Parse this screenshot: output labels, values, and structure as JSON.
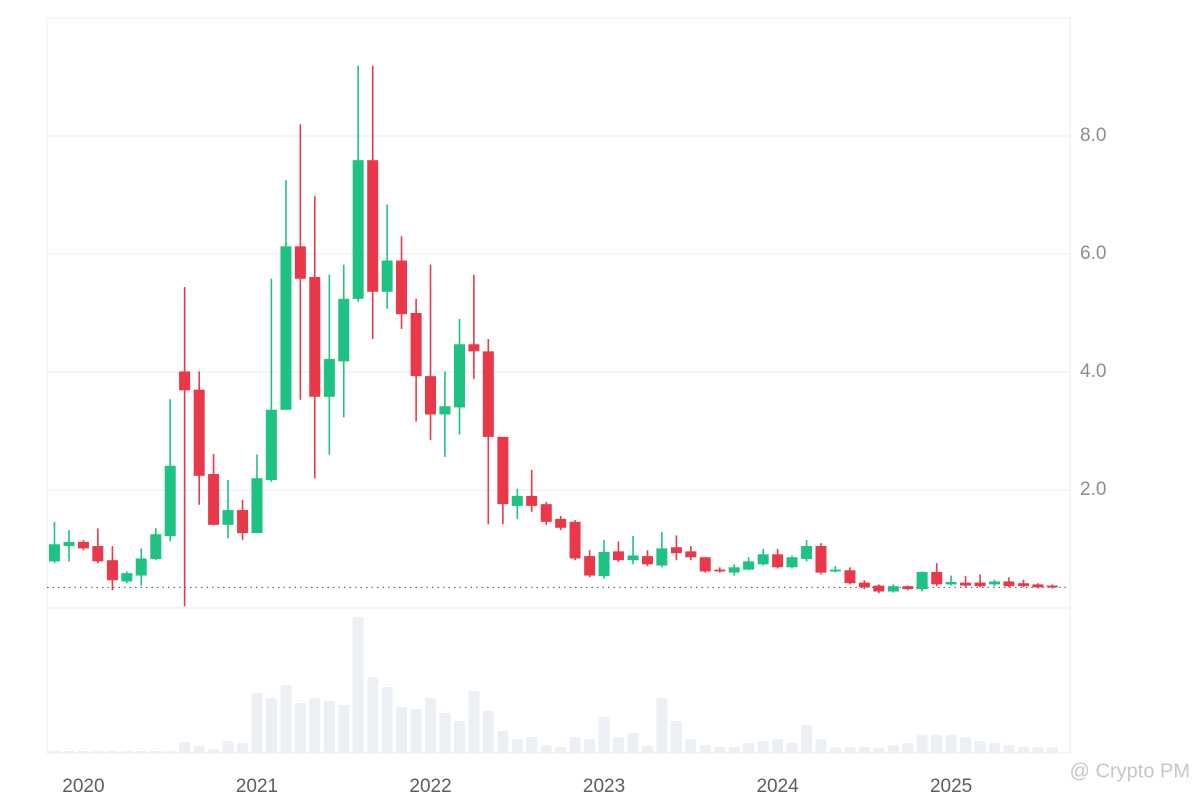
{
  "chart_data": {
    "type": "candlestick",
    "x": [
      2019.833,
      2019.917,
      2020,
      2020.083,
      2020.167,
      2020.25,
      2020.333,
      2020.417,
      2020.5,
      2020.583,
      2020.667,
      2020.75,
      2020.833,
      2020.917,
      2021,
      2021.083,
      2021.167,
      2021.25,
      2021.333,
      2021.417,
      2021.5,
      2021.583,
      2021.667,
      2021.75,
      2021.833,
      2021.917,
      2022,
      2022.083,
      2022.167,
      2022.25,
      2022.333,
      2022.417,
      2022.5,
      2022.583,
      2022.667,
      2022.75,
      2022.833,
      2022.917,
      2023,
      2023.083,
      2023.167,
      2023.25,
      2023.333,
      2023.417,
      2023.5,
      2023.583,
      2023.667,
      2023.75,
      2023.833,
      2023.917,
      2024,
      2024.083,
      2024.167,
      2024.25,
      2024.333,
      2024.417,
      2024.5,
      2024.583,
      2024.667,
      2024.75,
      2024.833,
      2024.917,
      2025,
      2025.083,
      2025.167,
      2025.25,
      2025.333,
      2025.417,
      2025.5,
      2025.583
    ],
    "open": [
      0.79,
      1.05,
      1.12,
      1.05,
      0.81,
      0.45,
      0.55,
      0.83,
      1.22,
      4.01,
      3.7,
      2.27,
      1.41,
      1.66,
      1.27,
      2.17,
      3.36,
      6.13,
      5.61,
      3.58,
      4.18,
      5.24,
      7.59,
      5.36,
      5.89,
      5.0,
      3.93,
      3.28,
      3.4,
      4.47,
      4.35,
      2.9,
      1.73,
      1.9,
      1.76,
      1.51,
      1.46,
      0.88,
      0.54,
      0.96,
      0.81,
      0.88,
      0.72,
      1.03,
      0.96,
      0.86,
      0.65,
      0.6,
      0.65,
      0.74,
      0.91,
      0.69,
      0.83,
      1.05,
      0.62,
      0.64,
      0.43,
      0.38,
      0.28,
      0.37,
      0.32,
      0.61,
      0.4,
      0.43,
      0.43,
      0.4,
      0.45,
      0.42,
      0.4,
      0.38
    ],
    "high": [
      1.46,
      1.32,
      1.15,
      1.35,
      1.05,
      0.62,
      1.01,
      1.35,
      3.54,
      5.44,
      4.01,
      2.61,
      2.17,
      1.83,
      2.6,
      5.58,
      7.25,
      8.2,
      6.98,
      5.65,
      5.82,
      9.19,
      9.19,
      6.84,
      6.3,
      5.24,
      5.82,
      4.01,
      4.9,
      5.65,
      4.56,
      2.9,
      2.02,
      2.34,
      1.8,
      1.56,
      1.49,
      0.98,
      1.15,
      1.13,
      1.22,
      0.98,
      1.29,
      1.23,
      1.05,
      0.86,
      0.69,
      0.74,
      0.86,
      1.0,
      1.0,
      0.89,
      1.15,
      1.1,
      0.71,
      0.69,
      0.47,
      0.4,
      0.4,
      0.38,
      0.62,
      0.76,
      0.55,
      0.54,
      0.57,
      0.48,
      0.52,
      0.48,
      0.42,
      0.4
    ],
    "low": [
      0.76,
      0.79,
      0.98,
      0.76,
      0.3,
      0.42,
      0.38,
      0.81,
      1.13,
      0.03,
      1.75,
      1.4,
      1.18,
      1.15,
      1.27,
      2.14,
      3.36,
      3.53,
      2.2,
      2.6,
      3.23,
      5.19,
      4.56,
      5.07,
      4.73,
      3.16,
      2.85,
      2.56,
      2.94,
      3.88,
      1.42,
      1.42,
      1.51,
      1.63,
      1.41,
      1.32,
      0.81,
      0.52,
      0.5,
      0.78,
      0.74,
      0.71,
      0.69,
      0.81,
      0.81,
      0.6,
      0.6,
      0.55,
      0.64,
      0.72,
      0.67,
      0.67,
      0.79,
      0.57,
      0.6,
      0.4,
      0.32,
      0.25,
      0.26,
      0.3,
      0.28,
      0.37,
      0.38,
      0.35,
      0.35,
      0.37,
      0.35,
      0.35,
      0.33,
      0.33
    ],
    "close": [
      1.08,
      1.12,
      1.01,
      0.79,
      0.47,
      0.59,
      0.84,
      1.25,
      2.41,
      3.69,
      2.24,
      1.41,
      1.66,
      1.27,
      2.2,
      3.36,
      6.13,
      5.58,
      3.58,
      4.22,
      5.24,
      7.59,
      5.36,
      5.89,
      4.98,
      3.93,
      3.28,
      3.42,
      4.47,
      4.35,
      2.9,
      1.76,
      1.9,
      1.73,
      1.46,
      1.36,
      0.84,
      0.55,
      0.95,
      0.81,
      0.89,
      0.74,
      1.01,
      0.93,
      0.86,
      0.62,
      0.62,
      0.69,
      0.79,
      0.91,
      0.69,
      0.86,
      1.05,
      0.6,
      0.65,
      0.42,
      0.35,
      0.28,
      0.37,
      0.32,
      0.61,
      0.4,
      0.44,
      0.38,
      0.37,
      0.45,
      0.37,
      0.37,
      0.35,
      0.35
    ],
    "volume": [
      2,
      2,
      2,
      2,
      2,
      2,
      2,
      2,
      2,
      11,
      7,
      4,
      12,
      10,
      60,
      55,
      68,
      50,
      55,
      52,
      48,
      136,
      76,
      66,
      46,
      44,
      55,
      40,
      32,
      62,
      42,
      22,
      14,
      16,
      8,
      6,
      16,
      14,
      36,
      16,
      20,
      7,
      55,
      32,
      14,
      8,
      6,
      6,
      10,
      12,
      14,
      10,
      28,
      14,
      6,
      6,
      6,
      5,
      8,
      10,
      18,
      18,
      18,
      16,
      12,
      10,
      8,
      6,
      6,
      6
    ],
    "up_color": "#1ec283",
    "down_color": "#e8384a",
    "volume_color": "#eceff3",
    "ylim": [
      0,
      10
    ],
    "yticks": [
      {
        "value": 2,
        "label": "2.0"
      },
      {
        "value": 4,
        "label": "4.0"
      },
      {
        "value": 6,
        "label": "6.0"
      },
      {
        "value": 8,
        "label": "8.0"
      }
    ],
    "xlim": [
      2019.79,
      2025.685
    ],
    "xticks": [
      2020,
      2021,
      2022,
      2023,
      2024,
      2025
    ],
    "volume_ylim": [
      0,
      145
    ],
    "price_line": 0.35,
    "grid": true
  },
  "watermark": "@ Crypto PM"
}
